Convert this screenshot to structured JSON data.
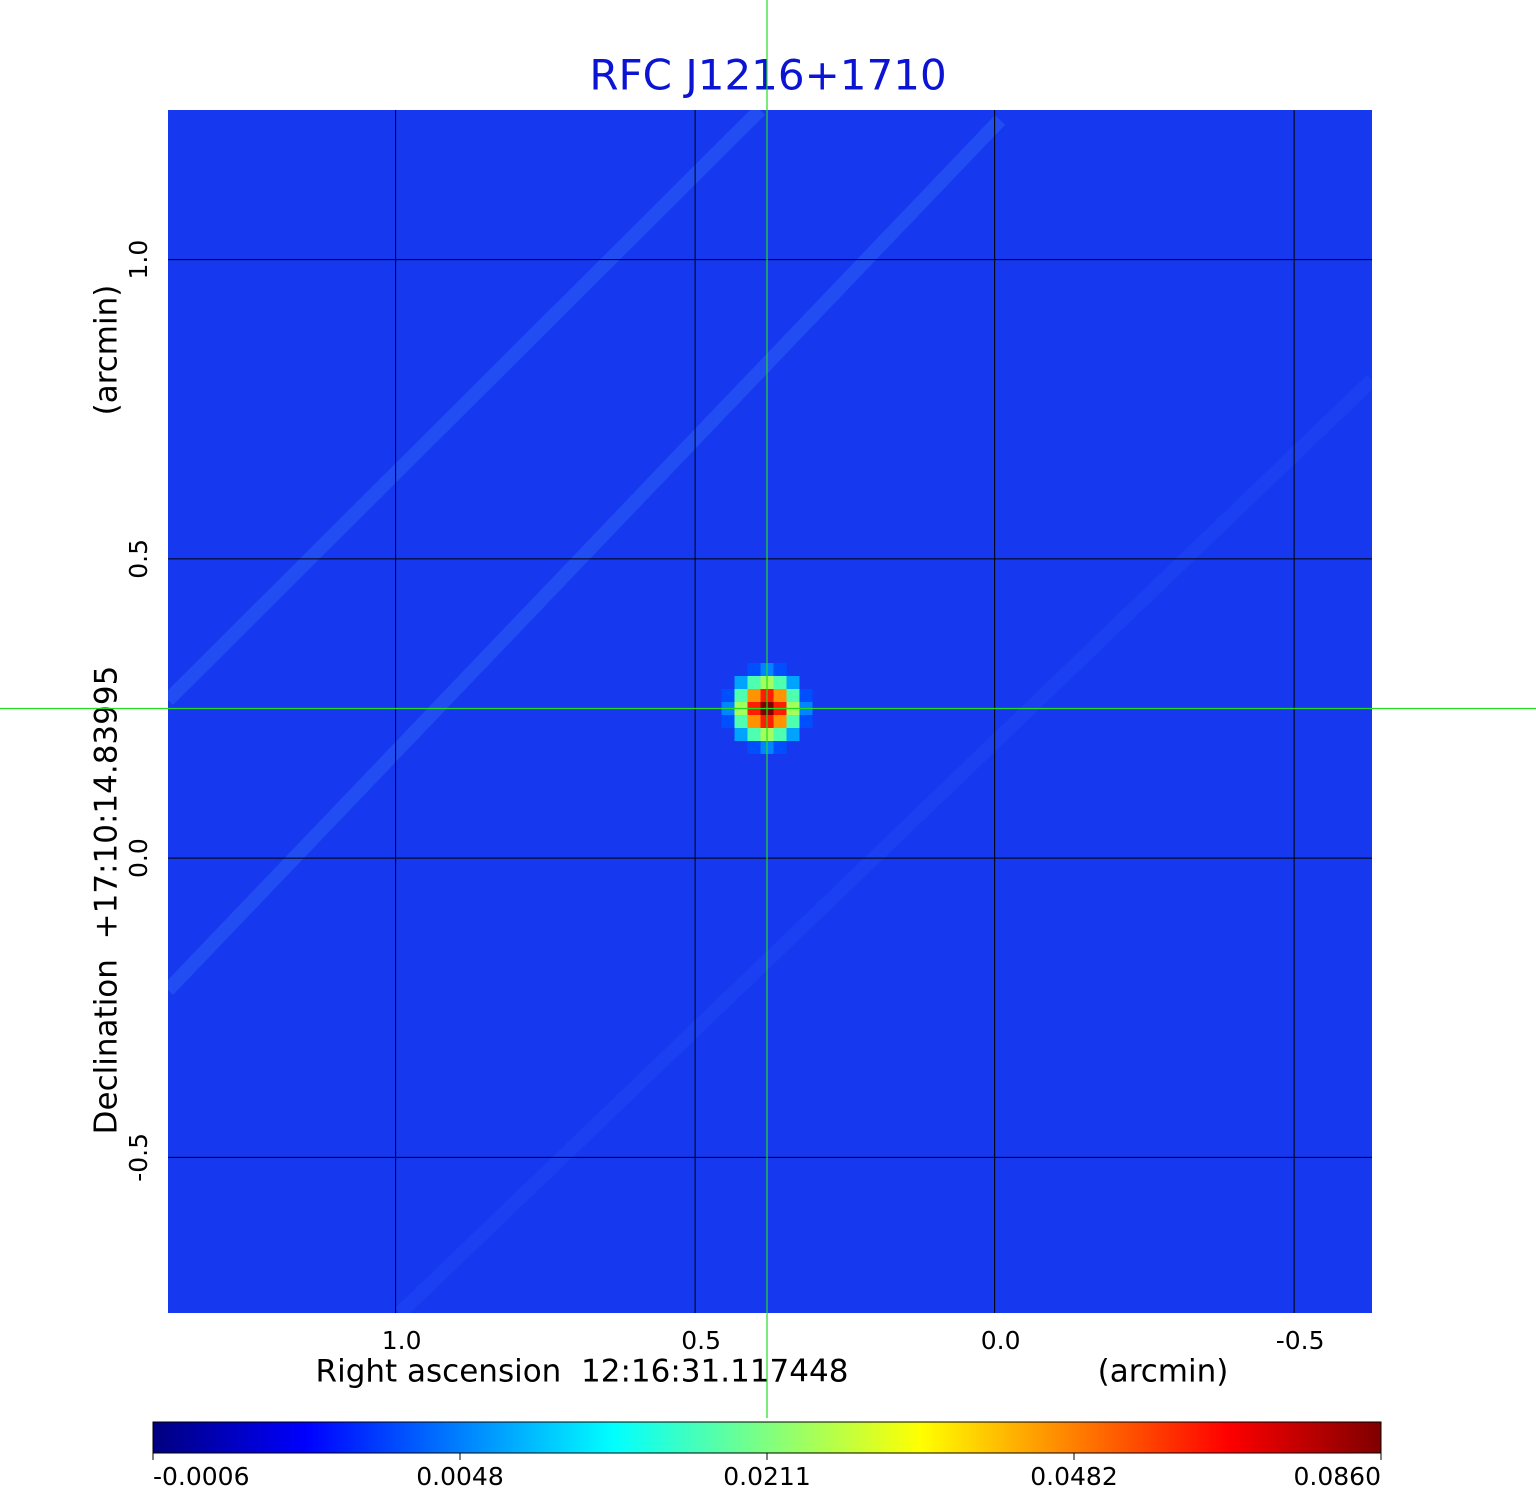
{
  "chart_data": {
    "type": "image",
    "title": "RFC J1216+1710",
    "xlabel": "Right ascension  12:16:31.117448",
    "xunit": "(arcmin)",
    "ylabel": "Declination  +17:10:14.83995",
    "yunit": "(arcmin)",
    "xlim": [
      1.38,
      -0.63
    ],
    "ylim": [
      -0.76,
      1.25
    ],
    "xticks": [
      {
        "value": 1,
        "label": "1.0"
      },
      0.5,
      {
        "value": 0,
        "label": "0.0"
      },
      -0.5
    ],
    "yticks": [
      -0.5,
      {
        "value": 0,
        "label": "0.0"
      },
      0.5,
      {
        "value": 1,
        "label": "1.0"
      }
    ],
    "grid": true,
    "crosshair": [
      0.38,
      0.25
    ],
    "source": {
      "x": 0.38,
      "y": 0.25,
      "peak": 0.086
    },
    "colorbar_ticks": [
      -0.0006,
      0.0048,
      0.0211,
      0.0482,
      {
        "value": 0.086,
        "label": "0.0860"
      }
    ]
  }
}
